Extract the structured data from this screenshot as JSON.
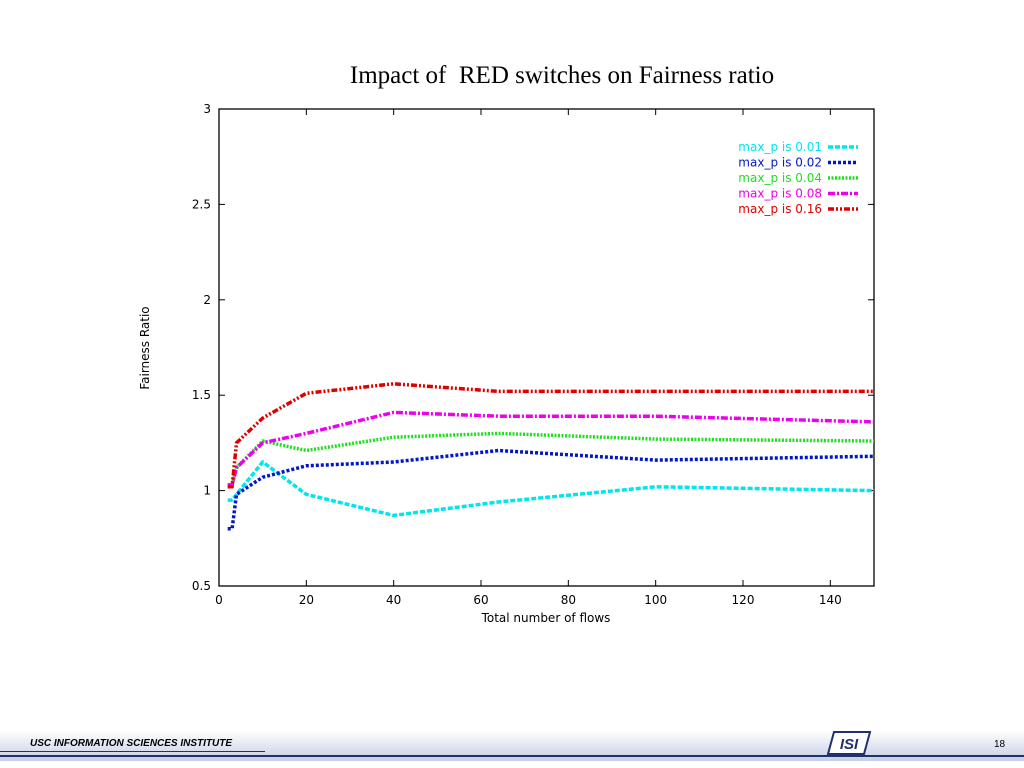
{
  "slide": {
    "title": "Impact of  RED switches on Fairness ratio",
    "footer_org": "USC INFORMATION SCIENCES INSTITUTE",
    "logo_text": "ISI",
    "page_number": "18"
  },
  "chart_data": {
    "type": "line",
    "title": "",
    "xlabel": "Total number of flows",
    "ylabel": "Fairness Ratio",
    "xlim": [
      0,
      150
    ],
    "ylim": [
      0.5,
      3
    ],
    "xticks": [
      0,
      20,
      40,
      60,
      80,
      100,
      120,
      140
    ],
    "yticks": [
      0.5,
      1,
      1.5,
      2,
      2.5,
      3
    ],
    "grid": false,
    "legend_position": "top-right",
    "x": [
      2,
      3,
      4,
      10,
      20,
      40,
      64,
      100,
      150
    ],
    "series": [
      {
        "name": "max_p is 0.01",
        "color": "#00e5ee",
        "dash": "5,2",
        "values": [
          0.95,
          0.95,
          0.98,
          1.15,
          0.98,
          0.87,
          0.94,
          1.02,
          1.0
        ]
      },
      {
        "name": "max_p is 0.02",
        "color": "#0018c8",
        "dash": "3,2",
        "values": [
          0.8,
          0.8,
          0.98,
          1.07,
          1.13,
          1.15,
          1.21,
          1.16,
          1.18
        ]
      },
      {
        "name": "max_p is 0.04",
        "color": "#22dd22",
        "dash": "2,1.5",
        "values": [
          1.03,
          1.03,
          1.12,
          1.26,
          1.21,
          1.28,
          1.3,
          1.27,
          1.26
        ]
      },
      {
        "name": "max_p is 0.08",
        "color": "#ee00ee",
        "dash": "7,2,2,2",
        "values": [
          1.03,
          1.03,
          1.12,
          1.25,
          1.3,
          1.41,
          1.39,
          1.39,
          1.36
        ]
      },
      {
        "name": "max_p is 0.16",
        "color": "#e00000",
        "dash": "6,2,2,2,2,2",
        "values": [
          1.02,
          1.02,
          1.25,
          1.38,
          1.51,
          1.56,
          1.52,
          1.52,
          1.52
        ]
      }
    ]
  }
}
